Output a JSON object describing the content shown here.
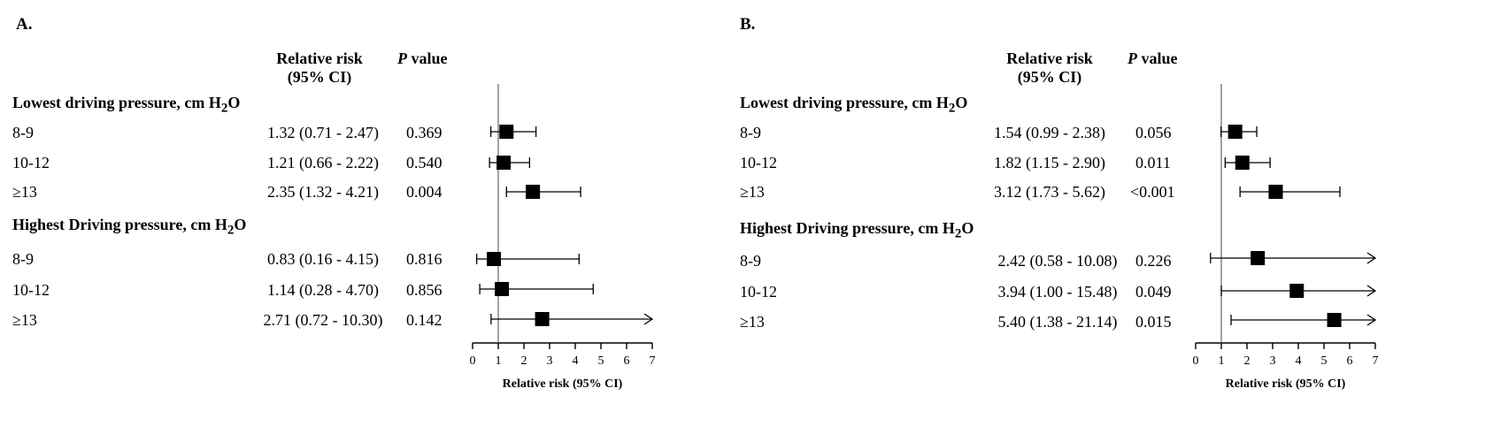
{
  "chart_data": [
    {
      "type": "forest",
      "panel_label": "A.",
      "col_headers": {
        "rr_line1": "Relative risk",
        "rr_line2": "(95% CI)",
        "p_italic": "P",
        "p_rest": " value"
      },
      "sections": [
        {
          "title": "Lowest driving pressure, cm H",
          "sub": "2",
          "tail": "O",
          "rows": [
            {
              "label": "8-9",
              "ci_text": "1.32 (0.71 - 2.47)",
              "p": "0.369",
              "rr": 1.32,
              "lo": 0.71,
              "hi": 2.47
            },
            {
              "label": "10-12",
              "ci_text": "1.21 (0.66 - 2.22)",
              "p": "0.540",
              "rr": 1.21,
              "lo": 0.66,
              "hi": 2.22
            },
            {
              "label": "≥13",
              "ci_text": "2.35 (1.32 - 4.21)",
              "p": "0.004",
              "rr": 2.35,
              "lo": 1.32,
              "hi": 4.21
            }
          ]
        },
        {
          "title": "Highest Driving pressure, cm H",
          "sub": "2",
          "tail": "O",
          "rows": [
            {
              "label": "8-9",
              "ci_text": "0.83 (0.16 - 4.15)",
              "p": "0.816",
              "rr": 0.83,
              "lo": 0.16,
              "hi": 4.15
            },
            {
              "label": "10-12",
              "ci_text": "1.14 (0.28 - 4.70)",
              "p": "0.856",
              "rr": 1.14,
              "lo": 0.28,
              "hi": 4.7
            },
            {
              "label": "≥13",
              "ci_text": "2.71 (0.72 - 10.30)",
              "p": "0.142",
              "rr": 2.71,
              "lo": 0.72,
              "hi": 10.3
            }
          ]
        }
      ],
      "xlim": [
        0,
        7
      ],
      "xticks": [
        "0",
        "1",
        "2",
        "3",
        "4",
        "5",
        "6",
        "7"
      ],
      "reference_line": 1,
      "xlabel": "Relative risk (95% CI)"
    },
    {
      "type": "forest",
      "panel_label": "B.",
      "col_headers": {
        "rr_line1": "Relative risk",
        "rr_line2": "(95% CI)",
        "p_italic": "P",
        "p_rest": " value"
      },
      "sections": [
        {
          "title": "Lowest driving pressure, cm H",
          "sub": "2",
          "tail": "O",
          "rows": [
            {
              "label": "8-9",
              "ci_text": "1.54 (0.99 - 2.38)",
              "p": "0.056",
              "rr": 1.54,
              "lo": 0.99,
              "hi": 2.38
            },
            {
              "label": "10-12",
              "ci_text": "1.82 (1.15 - 2.90)",
              "p": "0.011",
              "rr": 1.82,
              "lo": 1.15,
              "hi": 2.9
            },
            {
              "label": "≥13",
              "ci_text": "3.12 (1.73 - 5.62)",
              "p": "<0.001",
              "rr": 3.12,
              "lo": 1.73,
              "hi": 5.62
            }
          ]
        },
        {
          "title": "Highest Driving pressure, cm H",
          "sub": "2",
          "tail": "O",
          "rows": [
            {
              "label": "8-9",
              "ci_text": "2.42 (0.58 - 10.08)",
              "p": "0.226",
              "rr": 2.42,
              "lo": 0.58,
              "hi": 10.08
            },
            {
              "label": "10-12",
              "ci_text": "3.94 (1.00 - 15.48)",
              "p": "0.049",
              "rr": 3.94,
              "lo": 1.0,
              "hi": 15.48
            },
            {
              "label": "≥13",
              "ci_text": "5.40 (1.38 - 21.14)",
              "p": "0.015",
              "rr": 5.4,
              "lo": 1.38,
              "hi": 21.14
            }
          ]
        }
      ],
      "xlim": [
        0,
        7
      ],
      "xticks": [
        "0",
        "1",
        "2",
        "3",
        "4",
        "5",
        "6",
        "7"
      ],
      "reference_line": 1,
      "xlabel": "Relative risk (95% CI)"
    }
  ]
}
